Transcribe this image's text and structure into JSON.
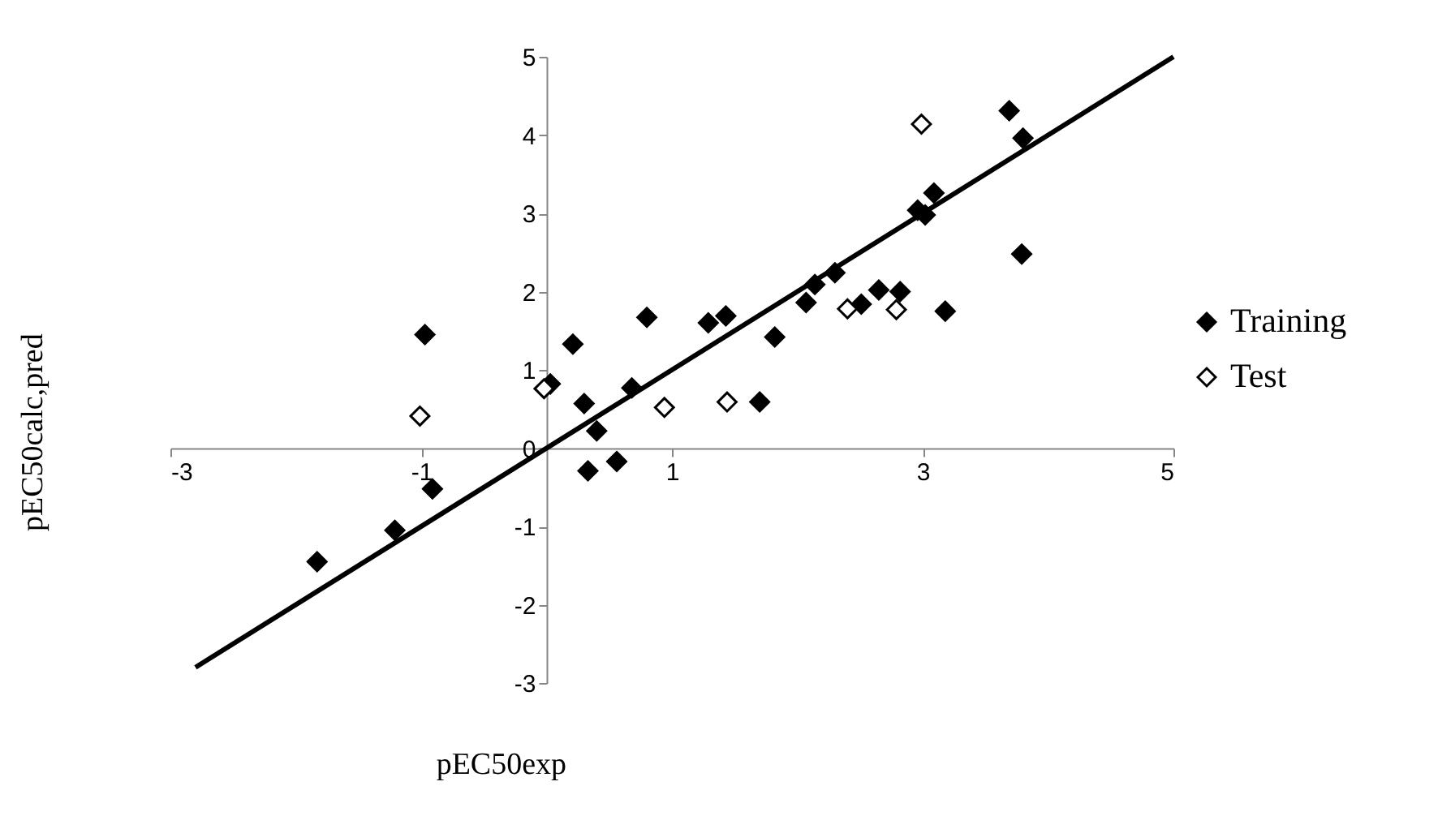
{
  "chart_data": {
    "type": "scatter",
    "xlabel": "pEC50exp",
    "ylabel": "pEC50calc,pred",
    "xlim": [
      -3,
      5
    ],
    "ylim": [
      -3,
      5
    ],
    "xticks": [
      -3,
      -1,
      1,
      3,
      5
    ],
    "yticks": [
      -3,
      -2,
      -1,
      0,
      1,
      2,
      3,
      4,
      5
    ],
    "legend": "right",
    "grid": false,
    "series": [
      {
        "name": "Training",
        "color": "#000000",
        "marker": "diamond",
        "x": [
          -0.97,
          0.21,
          0.8,
          1.29,
          1.43,
          0.03,
          0.3,
          0.68,
          3.69,
          3.8,
          3.09,
          2.96,
          3.02,
          3.79,
          2.3,
          2.14,
          2.07,
          1.82,
          2.51,
          2.65,
          2.82,
          3.18,
          1.7,
          0.4,
          0.33,
          0.56,
          -0.91,
          -1.21,
          -1.83
        ],
        "values": [
          1.45,
          1.33,
          1.67,
          1.6,
          1.69,
          0.82,
          0.57,
          0.77,
          4.31,
          3.96,
          3.26,
          3.04,
          2.98,
          2.48,
          2.24,
          2.09,
          1.86,
          1.42,
          1.84,
          2.02,
          2.0,
          1.75,
          0.59,
          0.22,
          -0.29,
          -0.17,
          -0.52,
          -1.05,
          -1.45
        ]
      },
      {
        "name": "Test",
        "color": "#000000",
        "marker": "diamond",
        "x": [
          -0.02,
          0.94,
          -1.01,
          2.99,
          2.4,
          2.79,
          1.44
        ],
        "values": [
          0.76,
          0.52,
          0.41,
          4.14,
          1.78,
          1.77,
          0.59
        ]
      },
      {
        "type": "line",
        "color": "#000000",
        "x": [
          -2.8,
          5
        ],
        "values": [
          -2.8,
          5
        ]
      }
    ]
  }
}
